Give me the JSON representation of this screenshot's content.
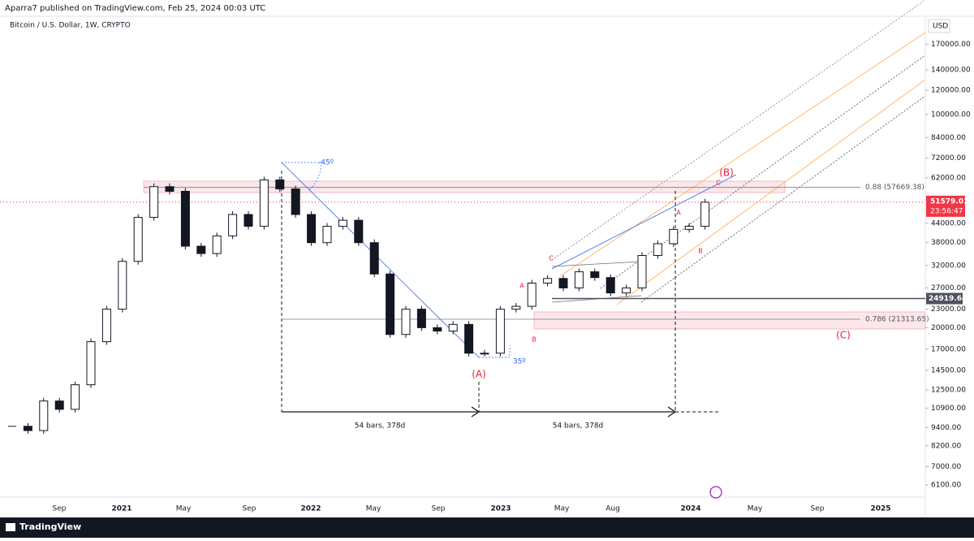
{
  "header": {
    "publisher": "Aparra7 published on TradingView.com, Feb 25, 2024 00:03 UTC"
  },
  "chart_data": {
    "type": "candlestick",
    "title": "Bitcoin / U.S. Dollar, 1W, CRYPTO",
    "currency": "USD",
    "log_scale": true,
    "ylim": [
      5566,
      209900
    ],
    "yticks": [
      {
        "value": 170000,
        "label": "170000.00"
      },
      {
        "value": 140000,
        "label": "140000.00"
      },
      {
        "value": 120000,
        "label": "120000.00"
      },
      {
        "value": 100000,
        "label": "100000.00"
      },
      {
        "value": 84000,
        "label": "84000.00"
      },
      {
        "value": 72000,
        "label": "72000.00"
      },
      {
        "value": 62000,
        "label": "62000.00"
      },
      {
        "value": 44000,
        "label": "44000.00"
      },
      {
        "value": 38000,
        "label": "38000.00"
      },
      {
        "value": 32000,
        "label": "32000.00"
      },
      {
        "value": 27000,
        "label": "27000.00"
      },
      {
        "value": 23000,
        "label": "23000.00"
      },
      {
        "value": 20000,
        "label": "20000.00"
      },
      {
        "value": 17000,
        "label": "17000.00"
      },
      {
        "value": 14500,
        "label": "14500.00"
      },
      {
        "value": 12500,
        "label": "12500.00"
      },
      {
        "value": 10900,
        "label": "10900.00"
      },
      {
        "value": 9400,
        "label": "9400.00"
      },
      {
        "value": 8200,
        "label": "8200.00"
      },
      {
        "value": 7000,
        "label": "7000.00"
      },
      {
        "value": 6100,
        "label": "6100.00"
      }
    ],
    "x_labels": [
      "Sep",
      "2021",
      "May",
      "Sep",
      "2022",
      "May",
      "Sep",
      "2023",
      "May",
      "Aug",
      "2024",
      "May",
      "Sep",
      "2025"
    ],
    "closes": [
      9500,
      9200,
      11500,
      10800,
      13000,
      18000,
      23000,
      33000,
      46000,
      58000,
      56000,
      37000,
      35000,
      40000,
      47000,
      43000,
      61000,
      57000,
      47000,
      38000,
      43000,
      45000,
      38000,
      30000,
      19000,
      23000,
      20000,
      19500,
      20500,
      16500,
      16500,
      23000,
      23500,
      28000,
      29000,
      27000,
      30500,
      29200,
      26000,
      27000,
      34500,
      37700,
      42000,
      43000,
      51579.01
    ],
    "last_price": 51579.01,
    "countdown": "23:56:47",
    "marked_level": 24919.64,
    "fib_levels": [
      {
        "value": 57669.38,
        "label": "0.88 (57669.38)"
      },
      {
        "value": 21313.65,
        "label": "0.786 (21313.65)"
      }
    ],
    "waves": [
      "(A)",
      "(B)",
      "(C)"
    ],
    "sub_waves": [
      "C",
      "A",
      "B",
      "A",
      "C",
      "B"
    ],
    "measures": [
      "54 bars, 378d",
      "54 bars, 378d"
    ],
    "angles": [
      "-45º",
      "35º"
    ]
  },
  "footer": {
    "brand": "TradingView"
  }
}
